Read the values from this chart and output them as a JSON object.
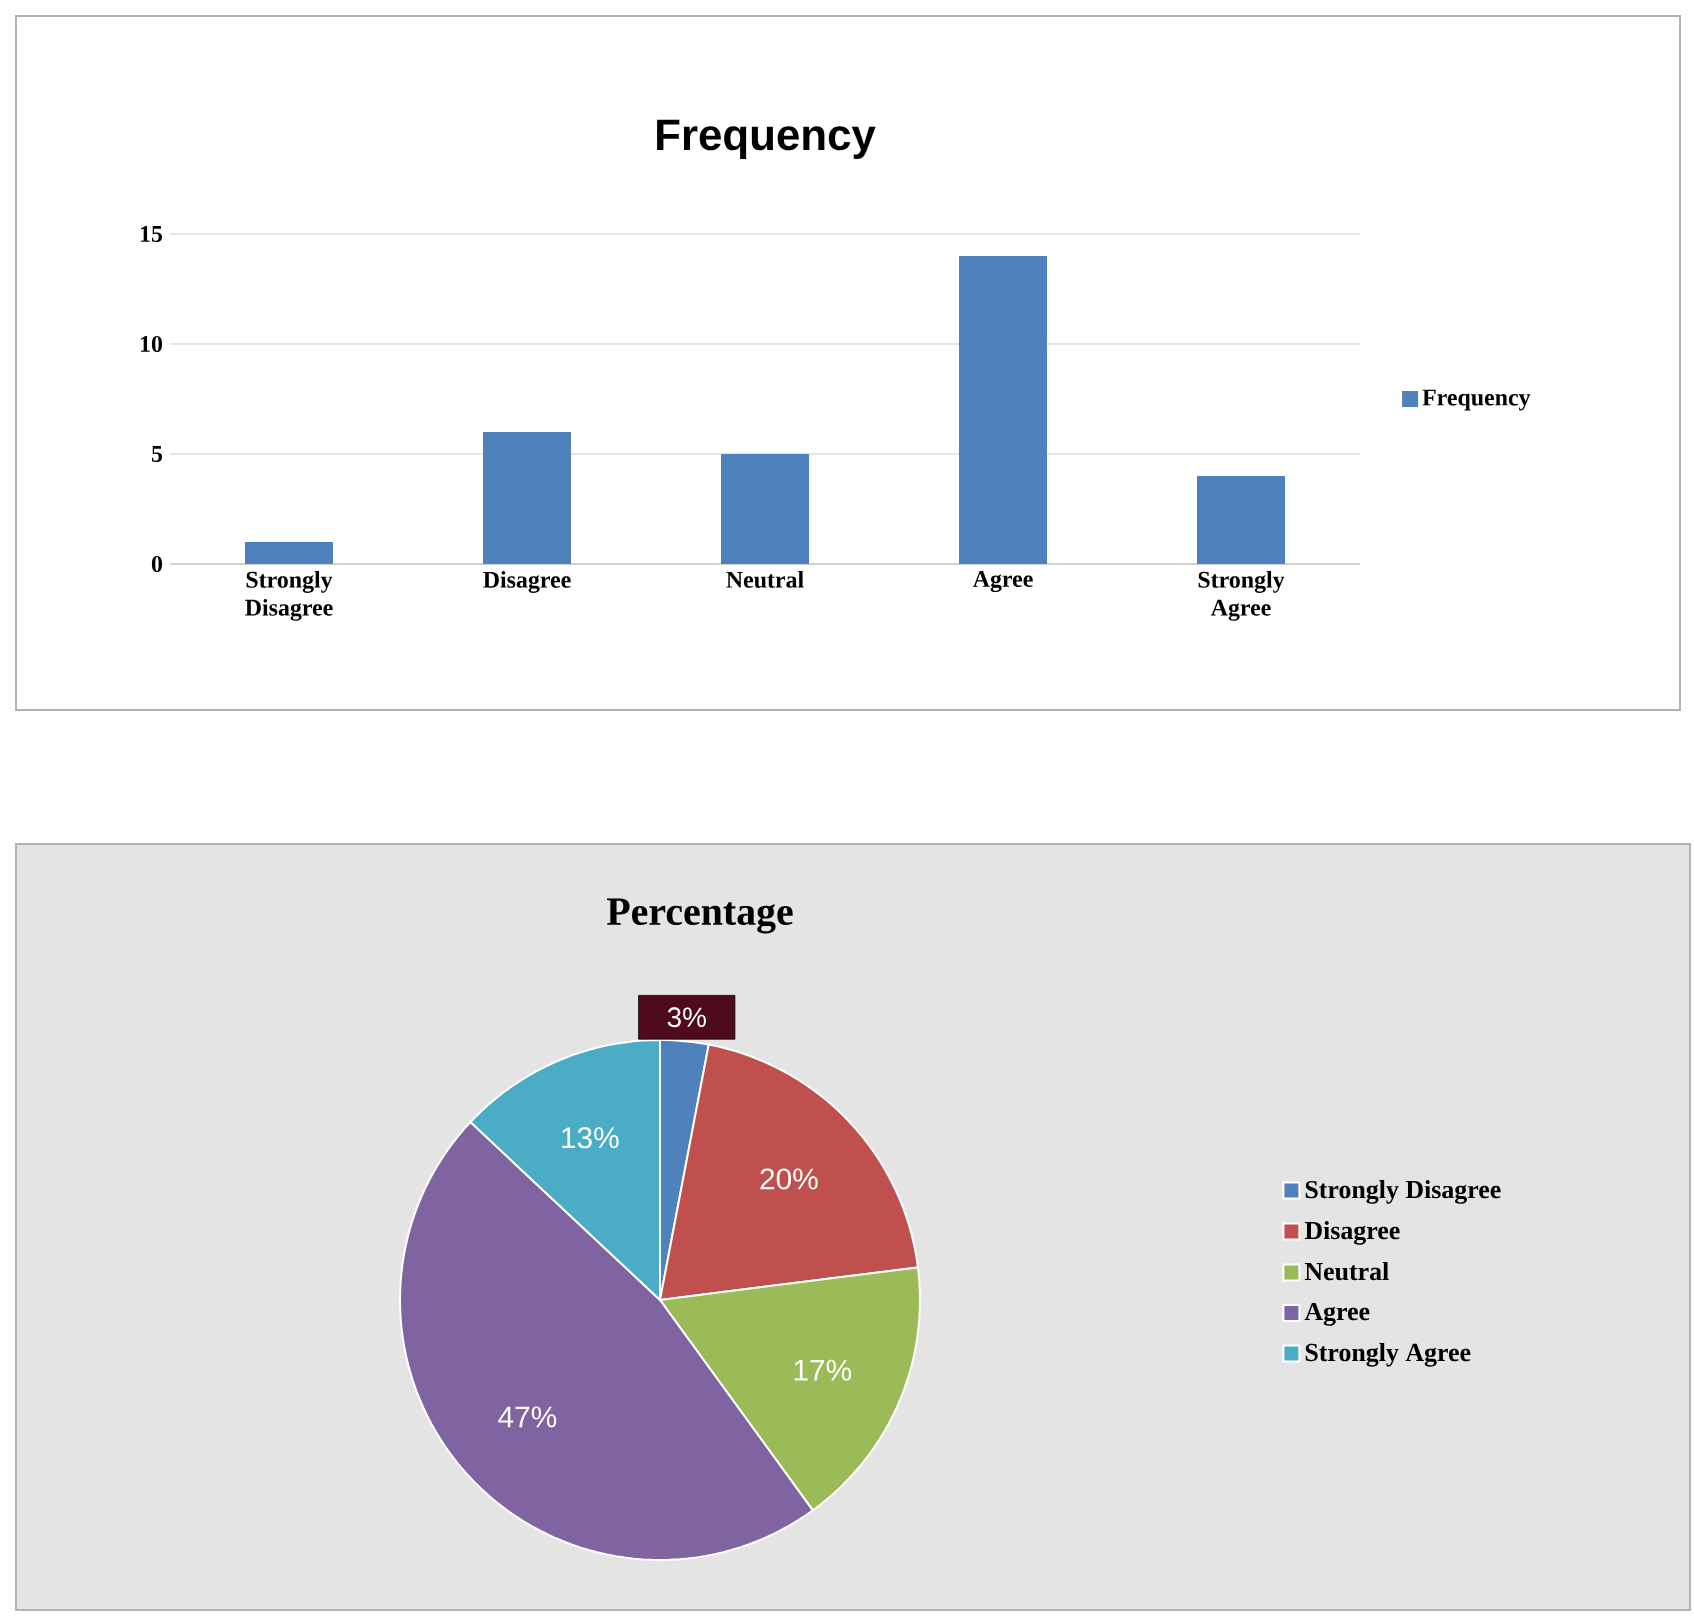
{
  "chart_data": [
    {
      "type": "bar",
      "title": "Frequency",
      "categories": [
        "Strongly Disagree",
        "Disagree",
        "Neutral",
        "Agree",
        "Strongly Agree"
      ],
      "series": [
        {
          "name": "Frequency",
          "color": "#4f81bd",
          "values": [
            1,
            6,
            5,
            14,
            4
          ]
        }
      ],
      "ylim": [
        0,
        15
      ],
      "yticks": [
        0,
        5,
        10,
        15
      ],
      "grid": "y",
      "legend": "right"
    },
    {
      "type": "pie",
      "title": "Percentage",
      "categories": [
        "Strongly Disagree",
        "Disagree",
        "Neutral",
        "Agree",
        "Strongly Agree"
      ],
      "values": [
        3,
        20,
        17,
        47,
        13
      ],
      "colors": [
        "#4f81bd",
        "#c0504d",
        "#9bbb59",
        "#8064a2",
        "#4bacc6"
      ],
      "value_labels": [
        "3%",
        "20%",
        "17%",
        "47%",
        "13%"
      ],
      "legend": "right"
    }
  ]
}
